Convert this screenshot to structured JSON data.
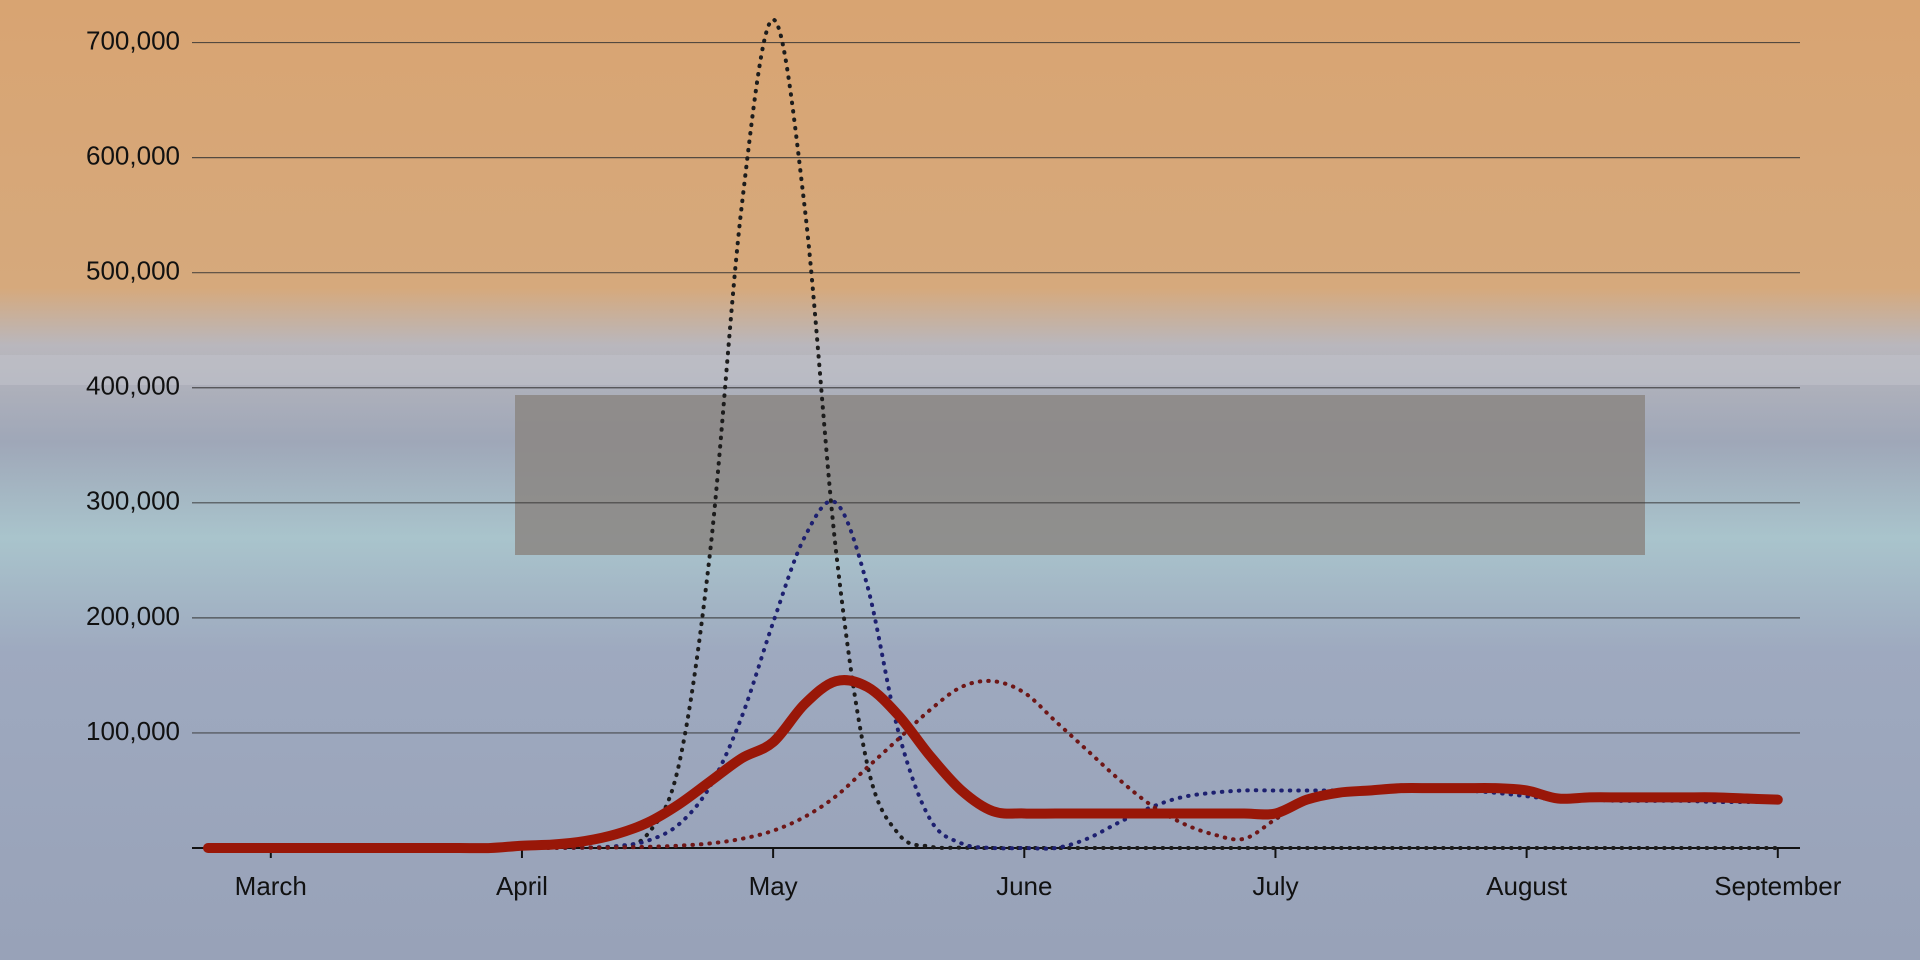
{
  "chart_data": {
    "type": "line",
    "categories": [
      null,
      null,
      "March",
      null,
      null,
      null,
      null,
      null,
      null,
      null,
      "April",
      null,
      null,
      null,
      null,
      null,
      null,
      null,
      "May",
      null,
      null,
      null,
      null,
      null,
      null,
      null,
      "June",
      null,
      null,
      null,
      null,
      null,
      null,
      null,
      "July",
      null,
      null,
      null,
      null,
      null,
      null,
      null,
      "August",
      null,
      null,
      null,
      null,
      null,
      null,
      null,
      "September"
    ],
    "series": [
      {
        "color": "#1c1c1c",
        "style": "dotted",
        "values": [
          0,
          0,
          0,
          0,
          0,
          0,
          0,
          0,
          0,
          100,
          200,
          300,
          500,
          1200,
          12000,
          72500,
          259000,
          558000,
          720000,
          558000,
          259000,
          72500,
          12000,
          1200,
          300,
          0,
          0,
          0,
          0,
          0,
          0,
          0,
          0,
          0,
          0,
          0,
          0,
          0,
          0,
          0,
          0,
          0,
          0,
          0,
          0,
          0,
          0,
          0,
          0,
          0,
          0
        ]
      },
      {
        "color": "#1d2070",
        "style": "dotted",
        "values": [
          0,
          0,
          0,
          0,
          0,
          0,
          0,
          0,
          0,
          0,
          0,
          100,
          300,
          1600,
          6300,
          20600,
          54000,
          114000,
          196000,
          270000,
          300000,
          228000,
          100000,
          25000,
          4000,
          0,
          0,
          0,
          8000,
          22000,
          35000,
          44000,
          48000,
          50000,
          50000,
          50000,
          50000,
          50000,
          50000,
          50000,
          50000,
          48000,
          45000,
          42000,
          42000,
          41000,
          41000,
          41000,
          40000,
          40000,
          40000
        ]
      },
      {
        "color": "#6e1616",
        "style": "dotted",
        "values": [
          0,
          0,
          0,
          0,
          0,
          0,
          0,
          0,
          0,
          0,
          0,
          100,
          300,
          500,
          1000,
          2000,
          4000,
          8000,
          15000,
          27000,
          45000,
          70000,
          95000,
          120000,
          140000,
          145000,
          135000,
          110000,
          85000,
          60000,
          38000,
          22000,
          12000,
          8000,
          25000,
          42000,
          50000,
          52000,
          52000,
          52000,
          52000,
          50000,
          48000,
          44000,
          43000,
          43000,
          42000,
          42000,
          42000,
          41000,
          40000
        ]
      },
      {
        "color": "#991708",
        "style": "solid",
        "values": [
          0,
          0,
          0,
          0,
          0,
          0,
          0,
          0,
          0,
          0,
          2000,
          3000,
          6000,
          12000,
          22000,
          38000,
          58000,
          78000,
          92000,
          125000,
          145000,
          140000,
          115000,
          80000,
          50000,
          32000,
          30000,
          30000,
          30000,
          30000,
          30000,
          30000,
          30000,
          30000,
          30000,
          42000,
          48000,
          50000,
          52000,
          52000,
          52000,
          52000,
          50000,
          43000,
          44000,
          44000,
          44000,
          44000,
          44000,
          43000,
          42000
        ]
      }
    ],
    "ylim": [
      0,
      737000
    ],
    "yticks": [
      {
        "value": 100000,
        "label": "100,000"
      },
      {
        "value": 200000,
        "label": "200,000"
      },
      {
        "value": 300000,
        "label": "300,000"
      },
      {
        "value": 400000,
        "label": "400,000"
      },
      {
        "value": 500000,
        "label": "500,000"
      },
      {
        "value": 600000,
        "label": "600,000"
      },
      {
        "value": 700000,
        "label": "700,000"
      }
    ],
    "grid": true
  }
}
